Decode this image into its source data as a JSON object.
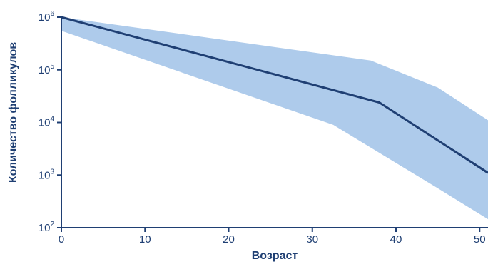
{
  "chart_data": {
    "type": "area",
    "xlabel": "Возраст",
    "ylabel": "Количество фолликулов",
    "xlim": [
      0,
      51
    ],
    "ylim": [
      100,
      1000000
    ],
    "yscale": "log",
    "x_ticks": [
      0,
      10,
      20,
      30,
      40,
      50
    ],
    "y_ticks": [
      {
        "value": 100,
        "base": "10",
        "exp": "2"
      },
      {
        "value": 1000,
        "base": "10",
        "exp": "3"
      },
      {
        "value": 10000,
        "base": "10",
        "exp": "4"
      },
      {
        "value": 100000,
        "base": "10",
        "exp": "5"
      },
      {
        "value": 1000000,
        "base": "10",
        "exp": "6"
      }
    ],
    "grid": false,
    "series": [
      {
        "role": "line",
        "color": "#1f3f73",
        "x": [
          0,
          38,
          51
        ],
        "y": [
          1000000,
          24000,
          1100
        ]
      },
      {
        "role": "range",
        "color": "#aecbeb",
        "upper": {
          "x": [
            0,
            37,
            45,
            51
          ],
          "y": [
            1000000,
            150000,
            46000,
            11000
          ]
        },
        "lower": {
          "x": [
            0,
            32.5,
            45,
            51
          ],
          "y": [
            550000,
            9000,
            560,
            145
          ]
        }
      }
    ]
  }
}
